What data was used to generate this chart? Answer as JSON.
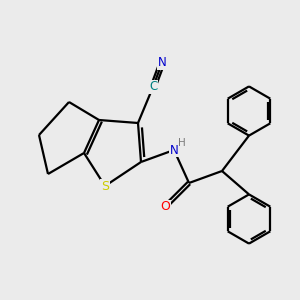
{
  "background_color": "#ebebeb",
  "bond_color": "#000000",
  "atom_colors": {
    "N": "#0000cc",
    "S": "#cccc00",
    "O": "#ff0000",
    "C_teal": "#008080",
    "H": "#7a7a7a"
  },
  "lw": 1.6
}
